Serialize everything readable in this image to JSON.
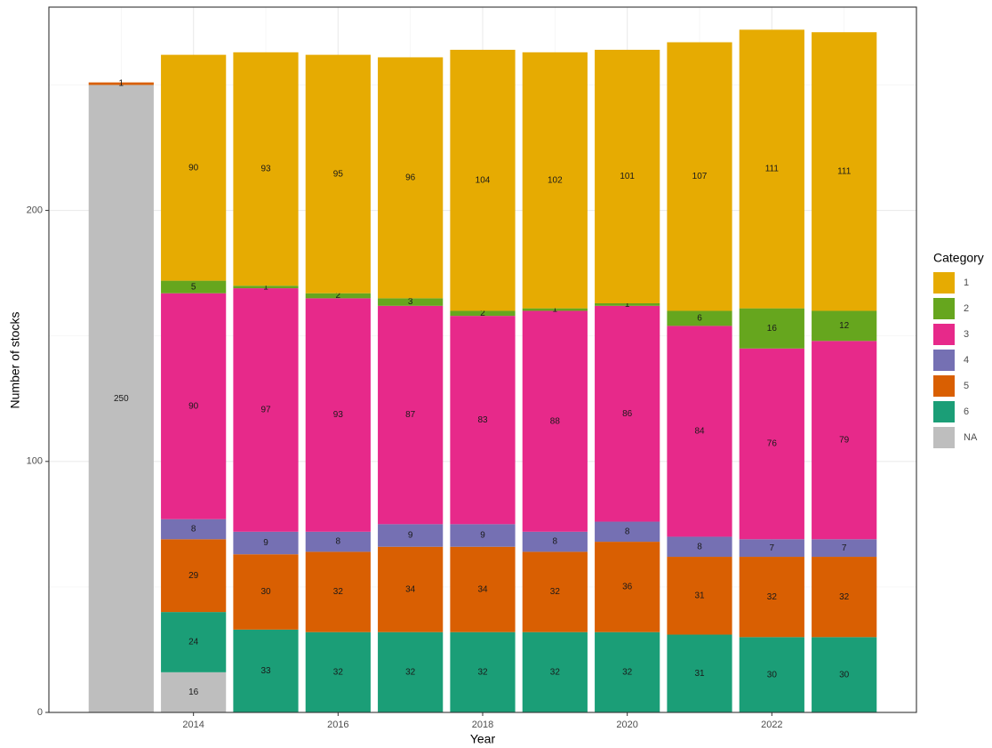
{
  "chart_data": {
    "type": "stacked_bar",
    "x_label": "Year",
    "y_label": "Number of stocks",
    "legend_title": "Category",
    "legend_position": "right",
    "x": [
      2013,
      2014,
      2015,
      2016,
      2017,
      2018,
      2019,
      2020,
      2021,
      2022,
      2023
    ],
    "xlim": [
      2012,
      2024
    ],
    "xticks": [
      2014,
      2016,
      2018,
      2020,
      2022
    ],
    "x_minor_ticks": [
      2013,
      2015,
      2017,
      2019,
      2021,
      2023
    ],
    "ylim": [
      0,
      281
    ],
    "yticks": [
      0,
      100,
      200
    ],
    "y_minor_ticks": [
      50,
      150,
      250
    ],
    "grid": true,
    "series": [
      {
        "name": "1",
        "color": "#E6AB02",
        "values": [
          null,
          90,
          93,
          95,
          96,
          104,
          102,
          101,
          107,
          111,
          111
        ]
      },
      {
        "name": "2",
        "color": "#66A61E",
        "values": [
          null,
          5,
          1,
          2,
          3,
          2,
          1,
          1,
          6,
          16,
          12
        ]
      },
      {
        "name": "3",
        "color": "#E7298A",
        "values": [
          null,
          90,
          97,
          93,
          87,
          83,
          88,
          86,
          84,
          76,
          79
        ]
      },
      {
        "name": "4",
        "color": "#7570B3",
        "values": [
          null,
          8,
          9,
          8,
          9,
          9,
          8,
          8,
          8,
          7,
          7
        ]
      },
      {
        "name": "5",
        "color": "#D95F02",
        "values": [
          1,
          29,
          30,
          32,
          34,
          34,
          32,
          36,
          31,
          32,
          32
        ]
      },
      {
        "name": "6",
        "color": "#1B9E77",
        "values": [
          null,
          24,
          33,
          32,
          32,
          32,
          32,
          32,
          31,
          30,
          30
        ]
      },
      {
        "name": "NA",
        "color": "#BEBEBE",
        "values": [
          250,
          16,
          null,
          null,
          null,
          null,
          null,
          null,
          null,
          null,
          null
        ]
      }
    ]
  }
}
